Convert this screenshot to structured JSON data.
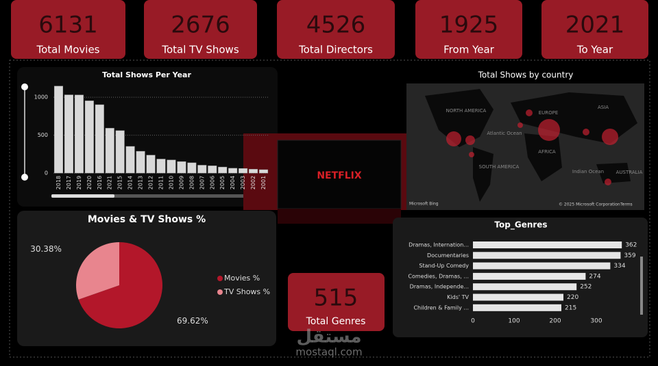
{
  "kpis": [
    {
      "value": "6131",
      "label": "Total Movies"
    },
    {
      "value": "2676",
      "label": "Total TV Shows"
    },
    {
      "value": "4526",
      "label": "Total Directors"
    },
    {
      "value": "1925",
      "label": "From Year"
    },
    {
      "value": "2021",
      "label": "To Year"
    }
  ],
  "genre_card": {
    "value": "515",
    "label": "Total Genres"
  },
  "logo": "NETFLIX",
  "map": {
    "title": "Total Shows by country",
    "labels": [
      "NORTH AMERICA",
      "EUROPE",
      "ASIA",
      "Atlantic Ocean",
      "AFRICA",
      "SOUTH AMERICA",
      "Indian Ocean",
      "AUSTRALIA"
    ],
    "credits": [
      "Microsoft Bing",
      "© 2025 Microsoft Corporation",
      "Terms"
    ]
  },
  "watermark": [
    "مستقل",
    "mostaql.com"
  ],
  "chart_data": [
    {
      "type": "bar",
      "title": "Total Shows Per Year",
      "color": "#d9d9d9",
      "categories": [
        "2018",
        "2017",
        "2019",
        "2020",
        "2016",
        "2021",
        "2015",
        "2014",
        "2013",
        "2012",
        "2011",
        "2010",
        "2009",
        "2008",
        "2007",
        "2006",
        "2005",
        "2004",
        "2003",
        "2002",
        "2001"
      ],
      "values": [
        1147,
        1032,
        1030,
        953,
        902,
        592,
        560,
        352,
        288,
        237,
        185,
        173,
        152,
        136,
        104,
        96,
        80,
        64,
        61,
        51,
        45
      ],
      "ylim": [
        0,
        1200
      ],
      "yticks": [
        0,
        500,
        1000
      ],
      "grid": true
    },
    {
      "type": "pie",
      "title": "Movies & TV Shows %",
      "series": [
        {
          "name": "Movies %",
          "color": "#b3172a",
          "values": [
            69.62
          ],
          "value_labels": [
            "69.62%"
          ]
        },
        {
          "name": "TV Shows %",
          "color": "#e8858e",
          "values": [
            30.38
          ],
          "value_labels": [
            "30.38%"
          ]
        }
      ]
    },
    {
      "type": "hbar",
      "title": "Top_Genres",
      "color": "#e6e6e6",
      "categories": [
        "Dramas, Internation...",
        "Documentaries",
        "Stand-Up Comedy",
        "Comedies, Dramas, ...",
        "Dramas, Independe...",
        "Kids' TV",
        "Children & Family ..."
      ],
      "values": [
        362,
        359,
        334,
        274,
        252,
        220,
        215
      ],
      "xlim": [
        0,
        400
      ],
      "xticks": [
        0,
        100,
        200,
        300
      ]
    }
  ]
}
